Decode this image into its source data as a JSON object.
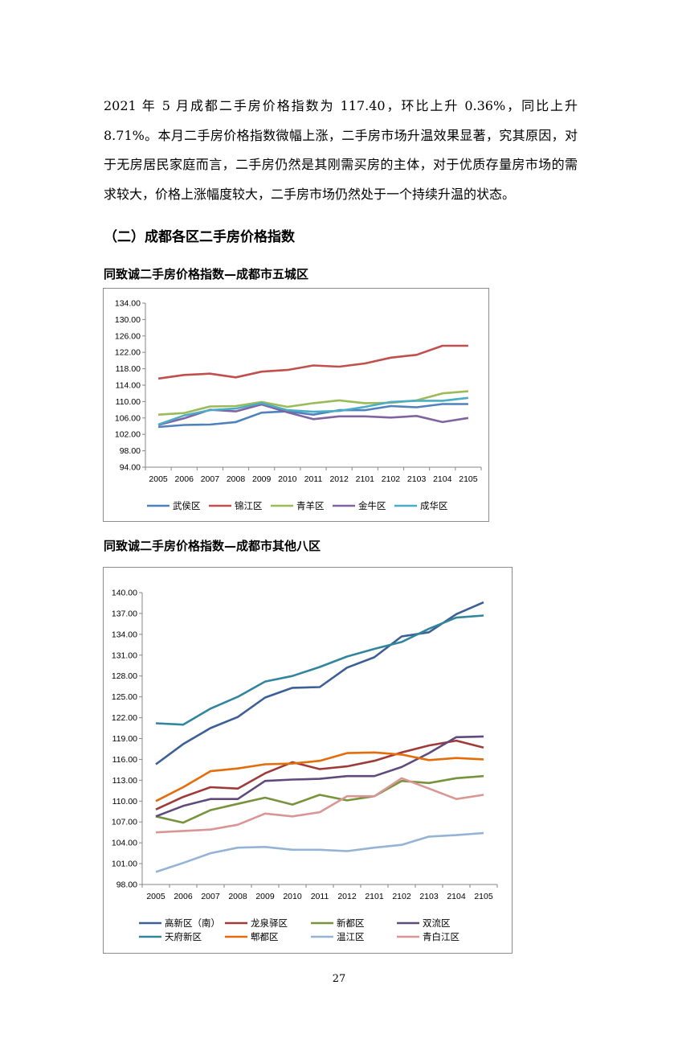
{
  "paragraph": "2021 年 5 月成都二手房价格指数为 117.40，环比上升 0.36%，同比上升 8.71%。本月二手房价格指数微幅上涨，二手房市场升温效果显著，究其原因，对于无房居民家庭而言，二手房仍然是其刚需买房的主体，对于优质存量房市场的需求较大，价格上涨幅度较大，二手房市场仍然处于一个持续升温的状态。",
  "section_heading": "（二）成都各区二手房价格指数",
  "page_number": "27",
  "chart_data": [
    {
      "type": "line",
      "title": "同致诚二手房价格指数—成都市五城区",
      "categories": [
        "2005",
        "2006",
        "2007",
        "2008",
        "2009",
        "2010",
        "2011",
        "2012",
        "2101",
        "2102",
        "2103",
        "2104",
        "2105"
      ],
      "ylim": [
        94,
        134
      ],
      "yticks": [
        "94.00",
        "98.00",
        "102.00",
        "106.00",
        "110.00",
        "114.00",
        "118.00",
        "122.00",
        "126.00",
        "130.00",
        "134.00"
      ],
      "legend_position": "bottom",
      "series": [
        {
          "name": "武侯区",
          "color": "#4f81bd",
          "values": [
            103.8,
            104.3,
            104.4,
            105.0,
            107.3,
            107.6,
            106.8,
            107.9,
            107.9,
            108.9,
            108.6,
            109.4,
            109.4
          ]
        },
        {
          "name": "锦江区",
          "color": "#c0504d",
          "values": [
            115.6,
            116.5,
            116.8,
            115.9,
            117.3,
            117.7,
            118.8,
            118.5,
            119.3,
            120.7,
            121.4,
            123.6,
            123.6
          ]
        },
        {
          "name": "青羊区",
          "color": "#9bbb59",
          "values": [
            106.8,
            107.2,
            108.8,
            108.9,
            109.9,
            108.7,
            109.6,
            110.3,
            109.6,
            109.7,
            110.3,
            112.0,
            112.5
          ]
        },
        {
          "name": "金牛区",
          "color": "#8064a2",
          "values": [
            104.3,
            105.9,
            108.0,
            107.6,
            109.3,
            107.4,
            105.7,
            106.4,
            106.4,
            106.1,
            106.5,
            105.0,
            106.0
          ]
        },
        {
          "name": "成华区",
          "color": "#4bacc6",
          "values": [
            104.4,
            106.6,
            107.9,
            108.3,
            109.6,
            107.9,
            107.5,
            107.7,
            108.7,
            109.9,
            110.2,
            110.2,
            110.9
          ]
        }
      ]
    },
    {
      "type": "line",
      "title": "同致诚二手房价格指数—成都市其他八区",
      "categories": [
        "2005",
        "2006",
        "2007",
        "2008",
        "2009",
        "2010",
        "2011",
        "2012",
        "2101",
        "2102",
        "2103",
        "2104",
        "2105"
      ],
      "ylim": [
        98,
        140
      ],
      "yticks": [
        "98.00",
        "101.00",
        "104.00",
        "107.00",
        "110.00",
        "113.00",
        "116.00",
        "119.00",
        "122.00",
        "125.00",
        "128.00",
        "131.00",
        "134.00",
        "137.00",
        "140.00"
      ],
      "legend_position": "bottom",
      "series": [
        {
          "name": "高新区（南）",
          "color": "#3c5f96",
          "values": [
            115.3,
            118.2,
            120.5,
            122.1,
            124.9,
            126.3,
            126.4,
            129.2,
            130.7,
            133.7,
            134.3,
            136.9,
            138.6
          ]
        },
        {
          "name": "龙泉驿区",
          "color": "#9e3a38",
          "values": [
            108.8,
            110.6,
            112.0,
            111.8,
            114.0,
            115.6,
            114.6,
            115.0,
            115.8,
            117.0,
            118.0,
            118.7,
            117.7
          ]
        },
        {
          "name": "新都区",
          "color": "#77933c",
          "values": [
            107.8,
            106.9,
            108.7,
            109.6,
            110.5,
            109.5,
            110.9,
            110.1,
            110.7,
            112.9,
            112.6,
            113.3,
            113.6
          ]
        },
        {
          "name": "双流区",
          "color": "#604a7b",
          "values": [
            107.8,
            109.3,
            110.3,
            110.3,
            112.9,
            113.1,
            113.2,
            113.6,
            113.6,
            114.9,
            116.9,
            119.2,
            119.3
          ]
        },
        {
          "name": "天府新区",
          "color": "#31859c",
          "values": [
            121.2,
            121.0,
            123.3,
            125.0,
            127.2,
            128.0,
            129.3,
            130.8,
            131.9,
            132.9,
            134.8,
            136.4,
            136.7
          ]
        },
        {
          "name": "郫都区",
          "color": "#e46c0a",
          "values": [
            110.0,
            112.0,
            114.3,
            114.7,
            115.3,
            115.4,
            115.8,
            116.9,
            117.0,
            116.7,
            115.9,
            116.2,
            116.0
          ]
        },
        {
          "name": "温江区",
          "color": "#95b3d7",
          "values": [
            99.8,
            101.1,
            102.5,
            103.3,
            103.4,
            103.0,
            103.0,
            102.8,
            103.3,
            103.7,
            104.9,
            105.1,
            105.4
          ]
        },
        {
          "name": "青白江区",
          "color": "#d99694",
          "values": [
            105.5,
            105.7,
            105.9,
            106.6,
            108.2,
            107.8,
            108.4,
            110.7,
            110.7,
            113.3,
            111.8,
            110.3,
            110.9
          ]
        }
      ]
    }
  ]
}
